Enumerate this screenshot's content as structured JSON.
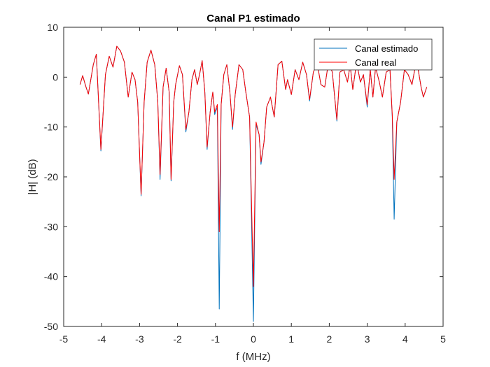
{
  "chart_data": {
    "type": "line",
    "title": "Canal P1 estimado",
    "xlabel": "f (MHz)",
    "ylabel": "|H| (dB)",
    "xlim": [
      -5,
      5
    ],
    "ylim": [
      -50,
      10
    ],
    "xticks": [
      -5,
      -4,
      -3,
      -2,
      -1,
      0,
      1,
      2,
      3,
      4,
      5
    ],
    "yticks": [
      -50,
      -40,
      -30,
      -20,
      -10,
      0,
      10
    ],
    "xtick_labels": [
      "-5",
      "-4",
      "-3",
      "-2",
      "-1",
      "0",
      "1",
      "2",
      "3",
      "4",
      "5"
    ],
    "ytick_labels": [
      "-50",
      "-40",
      "-30",
      "-20",
      "-10",
      "0",
      "10"
    ],
    "grid": false,
    "legend_position": "top-right",
    "series": [
      {
        "name": "Canal estimado",
        "color": "#0072BD",
        "points": [
          [
            -4.57,
            -1.5
          ],
          [
            -4.5,
            0.3
          ],
          [
            -4.42,
            -1.8
          ],
          [
            -4.35,
            -3.4
          ],
          [
            -4.22,
            2.5
          ],
          [
            -4.14,
            4.6
          ],
          [
            -4.02,
            -14.8
          ],
          [
            -3.9,
            0.5
          ],
          [
            -3.8,
            4.2
          ],
          [
            -3.7,
            2.0
          ],
          [
            -3.6,
            6.2
          ],
          [
            -3.5,
            5.2
          ],
          [
            -3.4,
            3.0
          ],
          [
            -3.3,
            -4.0
          ],
          [
            -3.2,
            1.0
          ],
          [
            -3.12,
            -0.5
          ],
          [
            -3.05,
            -5.0
          ],
          [
            -2.96,
            -23.8
          ],
          [
            -2.88,
            -5.0
          ],
          [
            -2.8,
            3.0
          ],
          [
            -2.7,
            5.4
          ],
          [
            -2.6,
            2.5
          ],
          [
            -2.52,
            -5.0
          ],
          [
            -2.46,
            -20.5
          ],
          [
            -2.38,
            -2.0
          ],
          [
            -2.3,
            1.8
          ],
          [
            -2.22,
            -3.0
          ],
          [
            -2.17,
            -20.8
          ],
          [
            -2.1,
            -5.0
          ],
          [
            -2.05,
            -1.5
          ],
          [
            -1.95,
            2.3
          ],
          [
            -1.87,
            0.5
          ],
          [
            -1.78,
            -11.0
          ],
          [
            -1.7,
            -7.0
          ],
          [
            -1.62,
            -0.5
          ],
          [
            -1.55,
            1.5
          ],
          [
            -1.48,
            -1.5
          ],
          [
            -1.42,
            0.5
          ],
          [
            -1.35,
            3.3
          ],
          [
            -1.28,
            -3.0
          ],
          [
            -1.22,
            -14.5
          ],
          [
            -1.14,
            -7.0
          ],
          [
            -1.07,
            -3.0
          ],
          [
            -1.02,
            -7.5
          ],
          [
            -0.95,
            -6.0
          ],
          [
            -0.9,
            -46.5
          ],
          [
            -0.85,
            -5.5
          ],
          [
            -0.78,
            0.5
          ],
          [
            -0.7,
            2.5
          ],
          [
            -0.62,
            -3.0
          ],
          [
            -0.55,
            -10.5
          ],
          [
            -0.48,
            -3.5
          ],
          [
            -0.38,
            2.5
          ],
          [
            -0.28,
            1.5
          ],
          [
            -0.2,
            -3.0
          ],
          [
            -0.1,
            -8.0
          ],
          [
            0.0,
            -49.0
          ],
          [
            0.07,
            -9.5
          ],
          [
            0.15,
            -11.5
          ],
          [
            0.2,
            -17.5
          ],
          [
            0.28,
            -13.0
          ],
          [
            0.35,
            -6.0
          ],
          [
            0.45,
            -4.0
          ],
          [
            0.55,
            -8.0
          ],
          [
            0.65,
            2.5
          ],
          [
            0.75,
            3.2
          ],
          [
            0.85,
            -2.5
          ],
          [
            0.9,
            -0.5
          ],
          [
            1.0,
            -3.5
          ],
          [
            1.1,
            1.5
          ],
          [
            1.2,
            -0.5
          ],
          [
            1.3,
            3.0
          ],
          [
            1.4,
            0.5
          ],
          [
            1.48,
            -4.8
          ],
          [
            1.58,
            1.0
          ],
          [
            1.68,
            2.8
          ],
          [
            1.78,
            -1.5
          ],
          [
            1.88,
            -2.0
          ],
          [
            1.98,
            3.0
          ],
          [
            2.08,
            1.0
          ],
          [
            2.2,
            -8.8
          ],
          [
            2.28,
            1.0
          ],
          [
            2.38,
            1.5
          ],
          [
            2.48,
            -1.0
          ],
          [
            2.55,
            2.5
          ],
          [
            2.62,
            -2.5
          ],
          [
            2.72,
            3.0
          ],
          [
            2.82,
            -1.0
          ],
          [
            2.9,
            0.5
          ],
          [
            3.0,
            -6.0
          ],
          [
            3.08,
            1.5
          ],
          [
            3.15,
            -4.0
          ],
          [
            3.22,
            2.0
          ],
          [
            3.32,
            -1.0
          ],
          [
            3.4,
            -4.0
          ],
          [
            3.5,
            1.0
          ],
          [
            3.6,
            1.5
          ],
          [
            3.66,
            -8.0
          ],
          [
            3.71,
            -28.5
          ],
          [
            3.78,
            -9.0
          ],
          [
            3.88,
            -5.0
          ],
          [
            3.98,
            1.5
          ],
          [
            4.08,
            0.5
          ],
          [
            4.18,
            -1.5
          ],
          [
            4.3,
            3.5
          ],
          [
            4.42,
            -2.0
          ],
          [
            4.48,
            -4.0
          ],
          [
            4.57,
            -2.0
          ]
        ]
      },
      {
        "name": "Canal real",
        "color": "#FF0000",
        "points": [
          [
            -4.57,
            -1.5
          ],
          [
            -4.5,
            0.3
          ],
          [
            -4.42,
            -1.8
          ],
          [
            -4.35,
            -3.4
          ],
          [
            -4.22,
            2.5
          ],
          [
            -4.14,
            4.6
          ],
          [
            -4.02,
            -14.5
          ],
          [
            -3.9,
            0.5
          ],
          [
            -3.8,
            4.2
          ],
          [
            -3.7,
            2.0
          ],
          [
            -3.6,
            6.2
          ],
          [
            -3.5,
            5.2
          ],
          [
            -3.4,
            3.0
          ],
          [
            -3.3,
            -4.0
          ],
          [
            -3.2,
            1.0
          ],
          [
            -3.12,
            -0.5
          ],
          [
            -3.05,
            -5.0
          ],
          [
            -2.96,
            -23.5
          ],
          [
            -2.88,
            -5.0
          ],
          [
            -2.8,
            3.0
          ],
          [
            -2.7,
            5.4
          ],
          [
            -2.6,
            2.5
          ],
          [
            -2.52,
            -5.0
          ],
          [
            -2.46,
            -19.5
          ],
          [
            -2.38,
            -2.0
          ],
          [
            -2.3,
            1.8
          ],
          [
            -2.22,
            -3.0
          ],
          [
            -2.17,
            -20.5
          ],
          [
            -2.1,
            -5.0
          ],
          [
            -2.05,
            -1.5
          ],
          [
            -1.95,
            2.3
          ],
          [
            -1.87,
            0.5
          ],
          [
            -1.78,
            -10.5
          ],
          [
            -1.7,
            -7.0
          ],
          [
            -1.62,
            -0.5
          ],
          [
            -1.55,
            1.5
          ],
          [
            -1.48,
            -1.5
          ],
          [
            -1.42,
            0.5
          ],
          [
            -1.35,
            3.3
          ],
          [
            -1.28,
            -3.0
          ],
          [
            -1.22,
            -14.0
          ],
          [
            -1.14,
            -7.0
          ],
          [
            -1.07,
            -3.0
          ],
          [
            -1.02,
            -7.0
          ],
          [
            -0.95,
            -5.5
          ],
          [
            -0.9,
            -31.0
          ],
          [
            -0.85,
            -5.5
          ],
          [
            -0.78,
            0.5
          ],
          [
            -0.7,
            2.5
          ],
          [
            -0.62,
            -3.0
          ],
          [
            -0.55,
            -10.0
          ],
          [
            -0.48,
            -3.5
          ],
          [
            -0.38,
            2.5
          ],
          [
            -0.28,
            1.5
          ],
          [
            -0.2,
            -3.0
          ],
          [
            -0.1,
            -8.0
          ],
          [
            0.0,
            -42.0
          ],
          [
            0.07,
            -9.0
          ],
          [
            0.15,
            -11.5
          ],
          [
            0.2,
            -17.0
          ],
          [
            0.28,
            -13.0
          ],
          [
            0.35,
            -6.0
          ],
          [
            0.45,
            -4.0
          ],
          [
            0.55,
            -8.0
          ],
          [
            0.65,
            2.5
          ],
          [
            0.75,
            3.2
          ],
          [
            0.85,
            -2.5
          ],
          [
            0.9,
            -0.5
          ],
          [
            1.0,
            -3.5
          ],
          [
            1.1,
            1.5
          ],
          [
            1.2,
            -0.5
          ],
          [
            1.3,
            3.0
          ],
          [
            1.4,
            0.5
          ],
          [
            1.48,
            -4.5
          ],
          [
            1.58,
            1.0
          ],
          [
            1.68,
            2.8
          ],
          [
            1.78,
            -1.5
          ],
          [
            1.88,
            -2.0
          ],
          [
            1.98,
            3.0
          ],
          [
            2.08,
            1.0
          ],
          [
            2.2,
            -8.5
          ],
          [
            2.28,
            1.0
          ],
          [
            2.38,
            1.5
          ],
          [
            2.48,
            -1.0
          ],
          [
            2.55,
            2.5
          ],
          [
            2.62,
            -2.5
          ],
          [
            2.72,
            3.0
          ],
          [
            2.82,
            -1.0
          ],
          [
            2.9,
            0.5
          ],
          [
            3.0,
            -5.5
          ],
          [
            3.08,
            1.5
          ],
          [
            3.15,
            -4.0
          ],
          [
            3.22,
            2.0
          ],
          [
            3.32,
            -1.0
          ],
          [
            3.4,
            -4.0
          ],
          [
            3.5,
            1.0
          ],
          [
            3.6,
            1.5
          ],
          [
            3.66,
            -7.5
          ],
          [
            3.71,
            -20.5
          ],
          [
            3.78,
            -9.0
          ],
          [
            3.88,
            -5.0
          ],
          [
            3.98,
            1.5
          ],
          [
            4.08,
            0.5
          ],
          [
            4.18,
            -1.5
          ],
          [
            4.3,
            3.5
          ],
          [
            4.42,
            -2.0
          ],
          [
            4.48,
            -4.0
          ],
          [
            4.57,
            -2.0
          ]
        ]
      }
    ]
  }
}
